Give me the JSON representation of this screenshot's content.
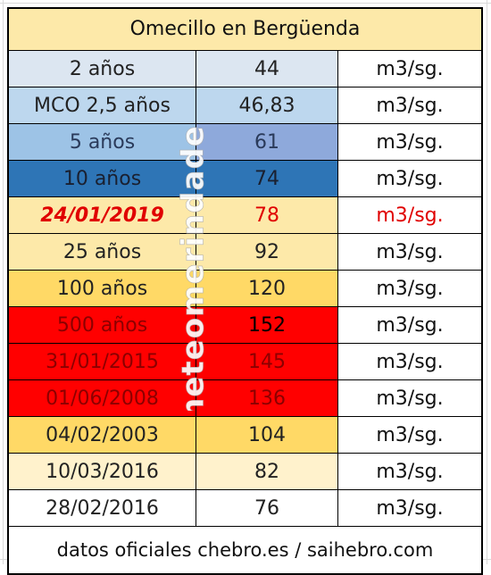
{
  "title": "Omecillo en Bergüenda",
  "watermark": "meteomerindades",
  "footer": "datos oficiales chebro.es / saihebro.com",
  "rows": [
    {
      "label": "2 años",
      "value": "44",
      "unit": "m3/sg.",
      "bg1": "#dce6f1",
      "bg2": "#dce6f1",
      "fg": "#222222"
    },
    {
      "label": "MCO 2,5 años",
      "value": "46,83",
      "unit": "m3/sg.",
      "bg1": "#bdd7ee",
      "bg2": "#bdd7ee",
      "fg": "#222222"
    },
    {
      "label": "5 años",
      "value": "61",
      "unit": "m3/sg.",
      "bg1": "#9dc3e6",
      "bg2": "#8ea9db",
      "fg": "#2a3a5a"
    },
    {
      "label": "10 años",
      "value": "74",
      "unit": "m3/sg.",
      "bg1": "#2e75b6",
      "bg2": "#2e75b6",
      "fg": "#1a2030"
    },
    {
      "label": "24/01/2019",
      "value": "78",
      "unit": "m3/sg.",
      "bg1": "#fde9a9",
      "bg2": "#fde9a9",
      "fg": "#e00000",
      "italic": true,
      "unitColor": "#e00000"
    },
    {
      "label": "25 años",
      "value": "92",
      "unit": "m3/sg.",
      "bg1": "#fde9a9",
      "bg2": "#fde9a9",
      "fg": "#222222"
    },
    {
      "label": "100 años",
      "value": "120",
      "unit": "m3/sg.",
      "bg1": "#ffd966",
      "bg2": "#ffd966",
      "fg": "#222222"
    },
    {
      "label": "500 años",
      "value": "152",
      "unit": "m3/sg.",
      "bg1": "#ff0000",
      "bg2": "#ff0000",
      "fg": "#8b0000",
      "valueColor": "#000000"
    },
    {
      "label": "31/01/2015",
      "value": "145",
      "unit": "m3/sg.",
      "bg1": "#ff0000",
      "bg2": "#ff0000",
      "fg": "#8b0000"
    },
    {
      "label": "01/06/2008",
      "value": "136",
      "unit": "m3/sg.",
      "bg1": "#ff0000",
      "bg2": "#ff0000",
      "fg": "#8b0000"
    },
    {
      "label": "04/02/2003",
      "value": "104",
      "unit": "m3/sg.",
      "bg1": "#ffd966",
      "bg2": "#ffd966",
      "fg": "#222222"
    },
    {
      "label": "10/03/2016",
      "value": "82",
      "unit": "m3/sg.",
      "bg1": "#fff2cc",
      "bg2": "#fff2cc",
      "fg": "#222222"
    },
    {
      "label": "28/02/2016",
      "value": "76",
      "unit": "m3/sg.",
      "bg1": "#ffffff",
      "bg2": "#ffffff",
      "fg": "#222222"
    }
  ]
}
